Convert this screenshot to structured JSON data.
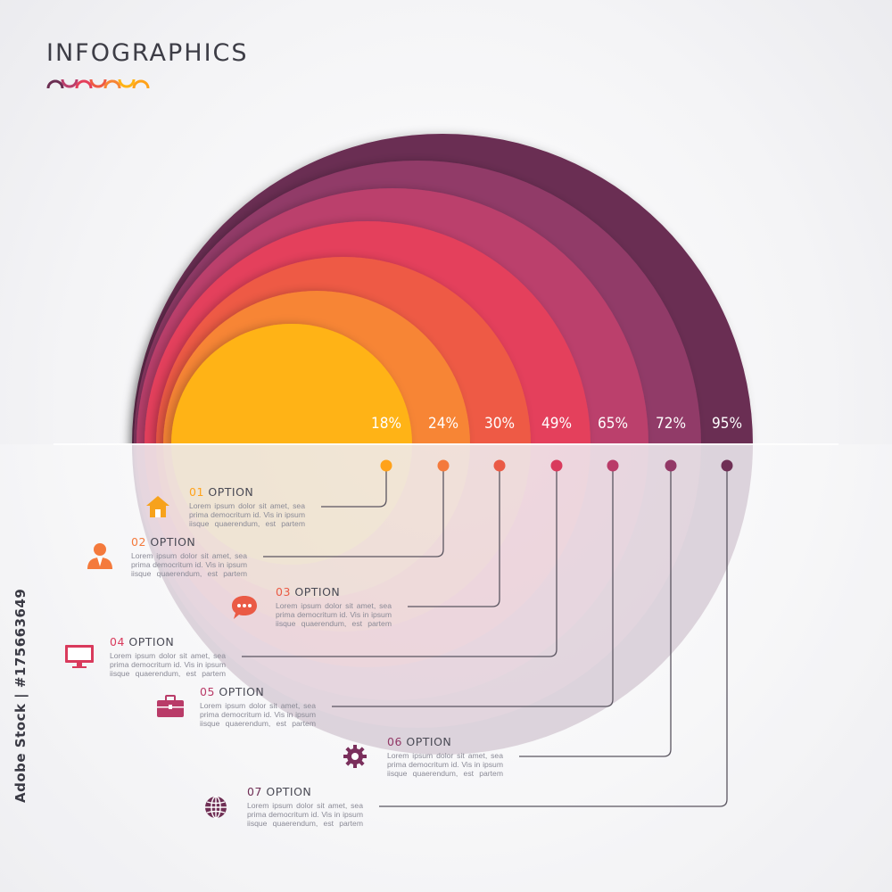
{
  "title": "INFOGRAPHICS",
  "stock_id": "Adobe Stock | #175663649",
  "colors": {
    "ring_1": "#ffb314",
    "ring_2": "#f78534",
    "ring_3": "#ee5a44",
    "ring_4": "#e43f5b",
    "ring_5": "#bb3f6c",
    "ring_6": "#913b68",
    "ring_7": "#6b2e52"
  },
  "options": [
    {
      "number": "01",
      "label": "OPTION",
      "percent": "18%",
      "value": 18,
      "color": "#ffa21a",
      "icon": "home-icon",
      "lines": [
        "Lorem ipsum dolor sit amet, sea",
        "prima democritum id. Vis in ipsum",
        "iisque quaerendum, est partem"
      ]
    },
    {
      "number": "02",
      "label": "OPTION",
      "percent": "24%",
      "value": 24,
      "color": "#f47a3c",
      "icon": "user-icon",
      "lines": [
        "Lorem ipsum dolor sit amet, sea",
        "prima democritum id. Vis in ipsum",
        "iisque quaerendum, est partem"
      ]
    },
    {
      "number": "03",
      "label": "OPTION",
      "percent": "30%",
      "value": 30,
      "color": "#ea5a45",
      "icon": "chat-bubble-icon",
      "lines": [
        "Lorem ipsum dolor sit amet, sea",
        "prima democritum id. Vis in ipsum",
        "iisque quaerendum, est partem"
      ]
    },
    {
      "number": "04",
      "label": "OPTION",
      "percent": "49%",
      "value": 49,
      "color": "#d93a5c",
      "icon": "monitor-icon",
      "lines": [
        "Lorem ipsum dolor sit amet, sea",
        "prima democritum id. Vis in ipsum",
        "iisque quaerendum, est partem"
      ]
    },
    {
      "number": "05",
      "label": "OPTION",
      "percent": "65%",
      "value": 65,
      "color": "#b93b68",
      "icon": "briefcase-icon",
      "lines": [
        "Lorem ipsum dolor sit amet, sea",
        "prima democritum id. Vis in ipsum",
        "iisque quaerendum, est partem"
      ]
    },
    {
      "number": "06",
      "label": "OPTION",
      "percent": "72%",
      "value": 72,
      "color": "#923866",
      "icon": "gear-icon",
      "lines": [
        "Lorem ipsum dolor sit amet, sea",
        "prima democritum id. Vis in ipsum",
        "iisque quaerendum, est partem"
      ]
    },
    {
      "number": "07",
      "label": "OPTION",
      "percent": "95%",
      "value": 95,
      "color": "#6f2f55",
      "icon": "globe-icon",
      "lines": [
        "Lorem ipsum dolor sit amet, sea",
        "prima democritum id. Vis in ipsum",
        "iisque quaerendum, est partem"
      ]
    }
  ]
}
